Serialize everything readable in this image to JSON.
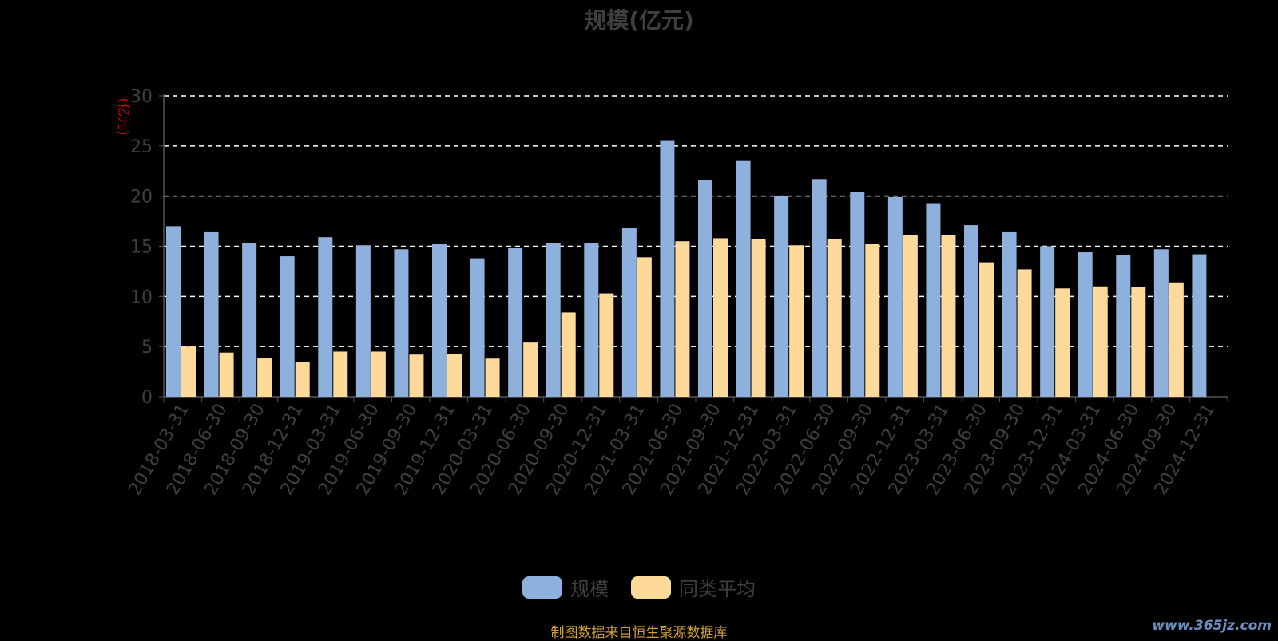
{
  "chart_data": {
    "type": "bar",
    "title": "规模(亿元)",
    "ylabel": "(亿元)",
    "xlabel": "",
    "ylim": [
      0,
      30
    ],
    "yticks": [
      0,
      5,
      10,
      15,
      20,
      25,
      30
    ],
    "grid": true,
    "legend_position": "bottom-center",
    "categories": [
      "2018-03-31",
      "2018-06-30",
      "2018-09-30",
      "2018-12-31",
      "2019-03-31",
      "2019-06-30",
      "2019-09-30",
      "2019-12-31",
      "2020-03-31",
      "2020-06-30",
      "2020-09-30",
      "2020-12-31",
      "2021-03-31",
      "2021-06-30",
      "2021-09-30",
      "2021-12-31",
      "2022-03-31",
      "2022-06-30",
      "2022-09-30",
      "2022-12-31",
      "2023-03-31",
      "2023-06-30",
      "2023-09-30",
      "2023-12-31",
      "2024-03-31",
      "2024-06-30",
      "2024-09-30",
      "2024-12-31"
    ],
    "series": [
      {
        "name": "规模",
        "color": "#8eb0dc",
        "values": [
          17.0,
          16.4,
          15.3,
          14.0,
          15.9,
          15.1,
          14.7,
          15.2,
          13.8,
          14.8,
          15.3,
          15.3,
          16.8,
          25.5,
          21.6,
          23.5,
          20.0,
          21.7,
          20.4,
          19.9,
          19.3,
          17.1,
          16.4,
          15.0,
          14.4,
          14.1,
          14.7,
          14.2
        ]
      },
      {
        "name": "同类平均",
        "color": "#fdd99a",
        "values": [
          5.0,
          4.4,
          3.9,
          3.5,
          4.5,
          4.5,
          4.2,
          4.3,
          3.8,
          5.4,
          8.4,
          10.3,
          13.9,
          15.5,
          15.8,
          15.7,
          15.1,
          15.7,
          15.2,
          16.1,
          16.1,
          13.4,
          12.7,
          10.8,
          11.0,
          10.9,
          11.4,
          null
        ]
      }
    ]
  },
  "source_note": "制图数据来自恒生聚源数据库",
  "watermark": "www.365jz.com"
}
